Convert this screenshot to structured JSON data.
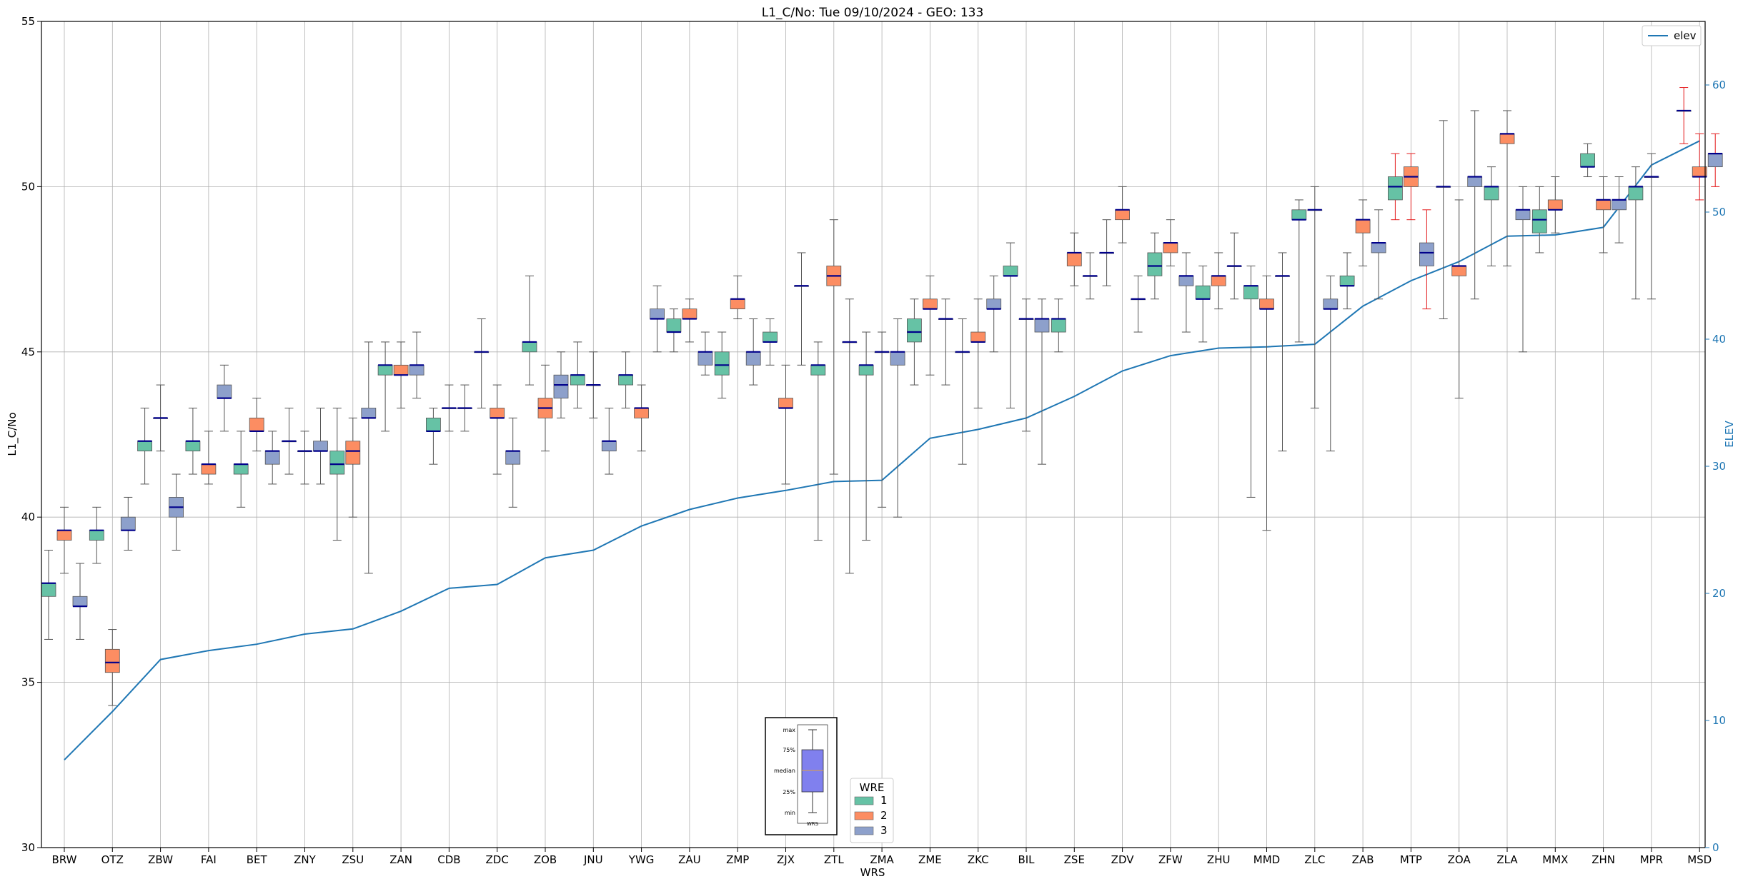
{
  "chart_data": {
    "type": "box",
    "title": "L1_C/No: Tue 09/10/2024 - GEO: 133",
    "xlabel": "WRS",
    "ylabel": "L1_C/No",
    "ylabel_right": "ELEV",
    "ylim": [
      30,
      55
    ],
    "ylim_right": [
      0,
      65
    ],
    "yticks": [
      30,
      35,
      40,
      45,
      50,
      55
    ],
    "yticks_right": [
      0,
      10,
      20,
      30,
      40,
      50,
      60
    ],
    "grid": true,
    "colors": {
      "1": "#66c2a5",
      "2": "#fc8d62",
      "3": "#8da0cb",
      "median": "#00008b",
      "whisker": "#555555",
      "elev": "#1f77b4",
      "whisker_alt": "#e41a1c"
    },
    "line_legend": {
      "label": "elev",
      "placement": "upper right"
    },
    "wre_legend": {
      "title": "WRE",
      "entries": [
        "1",
        "2",
        "3"
      ],
      "placement": "lower center"
    },
    "key_box": {
      "labels": [
        "max",
        "75%",
        "median",
        "25%",
        "min"
      ],
      "xlabel": "WRS"
    },
    "categories": [
      "BRW",
      "OTZ",
      "ZBW",
      "FAI",
      "BET",
      "ZNY",
      "ZSU",
      "ZAN",
      "CDB",
      "ZDC",
      "ZOB",
      "JNU",
      "YWG",
      "ZAU",
      "ZMP",
      "ZJX",
      "ZTL",
      "ZMA",
      "ZME",
      "ZKC",
      "BIL",
      "ZSE",
      "ZDV",
      "ZFW",
      "ZHU",
      "MMD",
      "ZLC",
      "ZAB",
      "MTP",
      "ZOA",
      "ZLA",
      "MMX",
      "ZHN",
      "MPR",
      "MSD"
    ],
    "elev": [
      6.9,
      10.7,
      14.8,
      15.5,
      16.0,
      16.8,
      17.2,
      18.6,
      20.4,
      20.7,
      22.8,
      23.4,
      25.3,
      26.6,
      27.5,
      28.1,
      28.8,
      28.9,
      32.2,
      32.9,
      33.8,
      35.5,
      37.5,
      38.7,
      39.3,
      39.4,
      39.6,
      42.6,
      44.6,
      46.1,
      48.1,
      48.2,
      48.8,
      53.7,
      55.6
    ],
    "boxes": [
      {
        "cat": "BRW",
        "wre": 1,
        "min": 36.3,
        "q1": 37.6,
        "med": 38.0,
        "q3": 38.0,
        "max": 39.0
      },
      {
        "cat": "BRW",
        "wre": 2,
        "min": 38.3,
        "q1": 39.3,
        "med": 39.6,
        "q3": 39.6,
        "max": 40.3
      },
      {
        "cat": "BRW",
        "wre": 3,
        "min": 36.3,
        "q1": 37.3,
        "med": 37.3,
        "q3": 37.6,
        "max": 38.6
      },
      {
        "cat": "OTZ",
        "wre": 1,
        "min": 38.6,
        "q1": 39.3,
        "med": 39.6,
        "q3": 39.6,
        "max": 40.3
      },
      {
        "cat": "OTZ",
        "wre": 2,
        "min": 34.3,
        "q1": 35.3,
        "med": 35.6,
        "q3": 36.0,
        "max": 36.6
      },
      {
        "cat": "OTZ",
        "wre": 3,
        "min": 39.0,
        "q1": 39.6,
        "med": 39.6,
        "q3": 40.0,
        "max": 40.6
      },
      {
        "cat": "ZBW",
        "wre": 1,
        "min": 41.0,
        "q1": 42.0,
        "med": 42.3,
        "q3": 42.3,
        "max": 43.3
      },
      {
        "cat": "ZBW",
        "wre": 2,
        "min": 42.0,
        "q1": 43.0,
        "med": 43.0,
        "q3": 43.0,
        "max": 44.0
      },
      {
        "cat": "ZBW",
        "wre": 3,
        "min": 39.0,
        "q1": 40.0,
        "med": 40.3,
        "q3": 40.6,
        "max": 41.3
      },
      {
        "cat": "FAI",
        "wre": 1,
        "min": 41.3,
        "q1": 42.0,
        "med": 42.3,
        "q3": 42.3,
        "max": 43.3
      },
      {
        "cat": "FAI",
        "wre": 2,
        "min": 41.0,
        "q1": 41.3,
        "med": 41.6,
        "q3": 41.6,
        "max": 42.6
      },
      {
        "cat": "FAI",
        "wre": 3,
        "min": 42.6,
        "q1": 43.6,
        "med": 43.6,
        "q3": 44.0,
        "max": 44.6
      },
      {
        "cat": "BET",
        "wre": 1,
        "min": 40.3,
        "q1": 41.3,
        "med": 41.6,
        "q3": 41.6,
        "max": 42.6
      },
      {
        "cat": "BET",
        "wre": 2,
        "min": 42.0,
        "q1": 42.6,
        "med": 42.6,
        "q3": 43.0,
        "max": 43.6
      },
      {
        "cat": "BET",
        "wre": 3,
        "min": 41.0,
        "q1": 41.6,
        "med": 42.0,
        "q3": 42.0,
        "max": 42.6
      },
      {
        "cat": "ZNY",
        "wre": 1,
        "min": 41.3,
        "q1": 42.3,
        "med": 42.3,
        "q3": 42.3,
        "max": 43.3
      },
      {
        "cat": "ZNY",
        "wre": 2,
        "min": 41.0,
        "q1": 42.0,
        "med": 42.0,
        "q3": 42.0,
        "max": 42.6
      },
      {
        "cat": "ZNY",
        "wre": 3,
        "min": 41.0,
        "q1": 42.0,
        "med": 42.0,
        "q3": 42.3,
        "max": 43.3
      },
      {
        "cat": "ZSU",
        "wre": 1,
        "min": 39.3,
        "q1": 41.3,
        "med": 41.6,
        "q3": 42.0,
        "max": 43.3
      },
      {
        "cat": "ZSU",
        "wre": 2,
        "min": 40.0,
        "q1": 41.6,
        "med": 42.0,
        "q3": 42.3,
        "max": 43.0
      },
      {
        "cat": "ZSU",
        "wre": 3,
        "min": 38.3,
        "q1": 43.0,
        "med": 43.0,
        "q3": 43.3,
        "max": 45.3
      },
      {
        "cat": "ZAN",
        "wre": 1,
        "min": 42.6,
        "q1": 44.3,
        "med": 44.6,
        "q3": 44.6,
        "max": 45.3
      },
      {
        "cat": "ZAN",
        "wre": 2,
        "min": 43.3,
        "q1": 44.3,
        "med": 44.3,
        "q3": 44.6,
        "max": 45.3
      },
      {
        "cat": "ZAN",
        "wre": 3,
        "min": 43.6,
        "q1": 44.3,
        "med": 44.6,
        "q3": 44.6,
        "max": 45.6
      },
      {
        "cat": "CDB",
        "wre": 1,
        "min": 41.6,
        "q1": 42.6,
        "med": 42.6,
        "q3": 43.0,
        "max": 43.3
      },
      {
        "cat": "CDB",
        "wre": 2,
        "min": 42.6,
        "q1": 43.3,
        "med": 43.3,
        "q3": 43.3,
        "max": 44.0
      },
      {
        "cat": "CDB",
        "wre": 3,
        "min": 42.6,
        "q1": 43.3,
        "med": 43.3,
        "q3": 43.3,
        "max": 44.0
      },
      {
        "cat": "ZDC",
        "wre": 1,
        "min": 43.3,
        "q1": 45.0,
        "med": 45.0,
        "q3": 45.0,
        "max": 46.0
      },
      {
        "cat": "ZDC",
        "wre": 2,
        "min": 41.3,
        "q1": 43.0,
        "med": 43.0,
        "q3": 43.3,
        "max": 44.0
      },
      {
        "cat": "ZDC",
        "wre": 3,
        "min": 40.3,
        "q1": 41.6,
        "med": 42.0,
        "q3": 42.0,
        "max": 43.0
      },
      {
        "cat": "ZOB",
        "wre": 1,
        "min": 44.0,
        "q1": 45.0,
        "med": 45.3,
        "q3": 45.3,
        "max": 47.3
      },
      {
        "cat": "ZOB",
        "wre": 2,
        "min": 42.0,
        "q1": 43.0,
        "med": 43.3,
        "q3": 43.6,
        "max": 44.6
      },
      {
        "cat": "ZOB",
        "wre": 3,
        "min": 43.0,
        "q1": 43.6,
        "med": 44.0,
        "q3": 44.3,
        "max": 45.0
      },
      {
        "cat": "JNU",
        "wre": 1,
        "min": 43.3,
        "q1": 44.0,
        "med": 44.3,
        "q3": 44.3,
        "max": 45.3
      },
      {
        "cat": "JNU",
        "wre": 2,
        "min": 43.0,
        "q1": 44.0,
        "med": 44.0,
        "q3": 44.0,
        "max": 45.0
      },
      {
        "cat": "JNU",
        "wre": 3,
        "min": 41.3,
        "q1": 42.0,
        "med": 42.3,
        "q3": 42.3,
        "max": 43.3
      },
      {
        "cat": "YWG",
        "wre": 1,
        "min": 43.3,
        "q1": 44.0,
        "med": 44.3,
        "q3": 44.3,
        "max": 45.0
      },
      {
        "cat": "YWG",
        "wre": 2,
        "min": 42.0,
        "q1": 43.0,
        "med": 43.3,
        "q3": 43.3,
        "max": 44.0
      },
      {
        "cat": "YWG",
        "wre": 3,
        "min": 45.0,
        "q1": 46.0,
        "med": 46.0,
        "q3": 46.3,
        "max": 47.0
      },
      {
        "cat": "ZAU",
        "wre": 1,
        "min": 45.0,
        "q1": 45.6,
        "med": 45.6,
        "q3": 46.0,
        "max": 46.3
      },
      {
        "cat": "ZAU",
        "wre": 2,
        "min": 45.3,
        "q1": 46.0,
        "med": 46.0,
        "q3": 46.3,
        "max": 46.6
      },
      {
        "cat": "ZAU",
        "wre": 3,
        "min": 44.3,
        "q1": 44.6,
        "med": 45.0,
        "q3": 45.0,
        "max": 45.6
      },
      {
        "cat": "ZMP",
        "wre": 1,
        "min": 43.6,
        "q1": 44.3,
        "med": 44.6,
        "q3": 45.0,
        "max": 45.6
      },
      {
        "cat": "ZMP",
        "wre": 2,
        "min": 46.0,
        "q1": 46.3,
        "med": 46.6,
        "q3": 46.6,
        "max": 47.3
      },
      {
        "cat": "ZMP",
        "wre": 3,
        "min": 44.0,
        "q1": 44.6,
        "med": 45.0,
        "q3": 45.0,
        "max": 46.0
      },
      {
        "cat": "ZJX",
        "wre": 1,
        "min": 44.6,
        "q1": 45.3,
        "med": 45.3,
        "q3": 45.6,
        "max": 46.0
      },
      {
        "cat": "ZJX",
        "wre": 2,
        "min": 41.0,
        "q1": 43.3,
        "med": 43.3,
        "q3": 43.6,
        "max": 44.6
      },
      {
        "cat": "ZJX",
        "wre": 3,
        "min": 44.6,
        "q1": 47.0,
        "med": 47.0,
        "q3": 47.0,
        "max": 48.0
      },
      {
        "cat": "ZTL",
        "wre": 1,
        "min": 39.3,
        "q1": 44.3,
        "med": 44.6,
        "q3": 44.6,
        "max": 45.3
      },
      {
        "cat": "ZTL",
        "wre": 2,
        "min": 41.3,
        "q1": 47.0,
        "med": 47.3,
        "q3": 47.6,
        "max": 49.0
      },
      {
        "cat": "ZTL",
        "wre": 3,
        "min": 38.3,
        "q1": 45.3,
        "med": 45.3,
        "q3": 45.3,
        "max": 46.6
      },
      {
        "cat": "ZMA",
        "wre": 1,
        "min": 39.3,
        "q1": 44.3,
        "med": 44.6,
        "q3": 44.6,
        "max": 45.6
      },
      {
        "cat": "ZMA",
        "wre": 2,
        "min": 40.3,
        "q1": 45.0,
        "med": 45.0,
        "q3": 45.0,
        "max": 45.6
      },
      {
        "cat": "ZMA",
        "wre": 3,
        "min": 40.0,
        "q1": 44.6,
        "med": 45.0,
        "q3": 45.0,
        "max": 46.0
      },
      {
        "cat": "ZME",
        "wre": 1,
        "min": 44.0,
        "q1": 45.3,
        "med": 45.6,
        "q3": 46.0,
        "max": 46.6
      },
      {
        "cat": "ZME",
        "wre": 2,
        "min": 44.3,
        "q1": 46.3,
        "med": 46.3,
        "q3": 46.6,
        "max": 47.3
      },
      {
        "cat": "ZME",
        "wre": 3,
        "min": 44.0,
        "q1": 46.0,
        "med": 46.0,
        "q3": 46.0,
        "max": 46.6
      },
      {
        "cat": "ZKC",
        "wre": 1,
        "min": 41.6,
        "q1": 45.0,
        "med": 45.0,
        "q3": 45.0,
        "max": 46.0
      },
      {
        "cat": "ZKC",
        "wre": 2,
        "min": 43.3,
        "q1": 45.3,
        "med": 45.3,
        "q3": 45.6,
        "max": 46.6
      },
      {
        "cat": "ZKC",
        "wre": 3,
        "min": 45.0,
        "q1": 46.3,
        "med": 46.3,
        "q3": 46.6,
        "max": 47.3
      },
      {
        "cat": "BIL",
        "wre": 1,
        "min": 43.3,
        "q1": 47.3,
        "med": 47.3,
        "q3": 47.6,
        "max": 48.3
      },
      {
        "cat": "BIL",
        "wre": 2,
        "min": 42.6,
        "q1": 46.0,
        "med": 46.0,
        "q3": 46.0,
        "max": 46.6
      },
      {
        "cat": "BIL",
        "wre": 3,
        "min": 41.6,
        "q1": 45.6,
        "med": 46.0,
        "q3": 46.0,
        "max": 46.6
      },
      {
        "cat": "ZSE",
        "wre": 1,
        "min": 45.0,
        "q1": 45.6,
        "med": 46.0,
        "q3": 46.0,
        "max": 46.6
      },
      {
        "cat": "ZSE",
        "wre": 2,
        "min": 47.0,
        "q1": 47.6,
        "med": 48.0,
        "q3": 48.0,
        "max": 48.6
      },
      {
        "cat": "ZSE",
        "wre": 3,
        "min": 46.6,
        "q1": 47.3,
        "med": 47.3,
        "q3": 47.3,
        "max": 48.0
      },
      {
        "cat": "ZDV",
        "wre": 1,
        "min": 47.0,
        "q1": 48.0,
        "med": 48.0,
        "q3": 48.0,
        "max": 49.0
      },
      {
        "cat": "ZDV",
        "wre": 2,
        "min": 48.3,
        "q1": 49.0,
        "med": 49.3,
        "q3": 49.3,
        "max": 50.0
      },
      {
        "cat": "ZDV",
        "wre": 3,
        "min": 45.6,
        "q1": 46.6,
        "med": 46.6,
        "q3": 46.6,
        "max": 47.3
      },
      {
        "cat": "ZFW",
        "wre": 1,
        "min": 46.6,
        "q1": 47.3,
        "med": 47.6,
        "q3": 48.0,
        "max": 48.6
      },
      {
        "cat": "ZFW",
        "wre": 2,
        "min": 47.6,
        "q1": 48.0,
        "med": 48.3,
        "q3": 48.3,
        "max": 49.0
      },
      {
        "cat": "ZFW",
        "wre": 3,
        "min": 45.6,
        "q1": 47.0,
        "med": 47.3,
        "q3": 47.3,
        "max": 48.0
      },
      {
        "cat": "ZHU",
        "wre": 1,
        "min": 45.3,
        "q1": 46.6,
        "med": 46.6,
        "q3": 47.0,
        "max": 47.6
      },
      {
        "cat": "ZHU",
        "wre": 2,
        "min": 46.3,
        "q1": 47.0,
        "med": 47.3,
        "q3": 47.3,
        "max": 48.0
      },
      {
        "cat": "ZHU",
        "wre": 3,
        "min": 46.6,
        "q1": 47.6,
        "med": 47.6,
        "q3": 47.6,
        "max": 48.6
      },
      {
        "cat": "MMD",
        "wre": 1,
        "min": 40.6,
        "q1": 46.6,
        "med": 47.0,
        "q3": 47.0,
        "max": 47.6
      },
      {
        "cat": "MMD",
        "wre": 2,
        "min": 39.6,
        "q1": 46.3,
        "med": 46.3,
        "q3": 46.6,
        "max": 47.3
      },
      {
        "cat": "MMD",
        "wre": 3,
        "min": 42.0,
        "q1": 47.3,
        "med": 47.3,
        "q3": 47.3,
        "max": 48.0
      },
      {
        "cat": "ZLC",
        "wre": 1,
        "min": 45.3,
        "q1": 49.0,
        "med": 49.0,
        "q3": 49.3,
        "max": 49.6
      },
      {
        "cat": "ZLC",
        "wre": 2,
        "min": 43.3,
        "q1": 49.3,
        "med": 49.3,
        "q3": 49.3,
        "max": 50.0
      },
      {
        "cat": "ZLC",
        "wre": 3,
        "min": 42.0,
        "q1": 46.3,
        "med": 46.3,
        "q3": 46.6,
        "max": 47.3
      },
      {
        "cat": "ZAB",
        "wre": 1,
        "min": 46.3,
        "q1": 47.0,
        "med": 47.0,
        "q3": 47.3,
        "max": 48.0
      },
      {
        "cat": "ZAB",
        "wre": 2,
        "min": 47.6,
        "q1": 48.6,
        "med": 49.0,
        "q3": 49.0,
        "max": 49.6
      },
      {
        "cat": "ZAB",
        "wre": 3,
        "min": 46.6,
        "q1": 48.0,
        "med": 48.3,
        "q3": 48.3,
        "max": 49.3
      },
      {
        "cat": "MTP",
        "wre": 1,
        "min": 49.0,
        "q1": 49.6,
        "med": 50.0,
        "q3": 50.3,
        "max": 51.0,
        "whisker": "alt"
      },
      {
        "cat": "MTP",
        "wre": 2,
        "min": 49.0,
        "q1": 50.0,
        "med": 50.3,
        "q3": 50.6,
        "max": 51.0,
        "whisker": "alt"
      },
      {
        "cat": "MTP",
        "wre": 3,
        "min": 46.3,
        "q1": 47.6,
        "med": 48.0,
        "q3": 48.3,
        "max": 49.3,
        "whisker": "alt"
      },
      {
        "cat": "ZOA",
        "wre": 1,
        "min": 46.0,
        "q1": 50.0,
        "med": 50.0,
        "q3": 50.0,
        "max": 52.0
      },
      {
        "cat": "ZOA",
        "wre": 2,
        "min": 43.6,
        "q1": 47.3,
        "med": 47.6,
        "q3": 47.6,
        "max": 49.6
      },
      {
        "cat": "ZOA",
        "wre": 3,
        "min": 46.6,
        "q1": 50.0,
        "med": 50.3,
        "q3": 50.3,
        "max": 52.3
      },
      {
        "cat": "ZLA",
        "wre": 1,
        "min": 47.6,
        "q1": 49.6,
        "med": 50.0,
        "q3": 50.0,
        "max": 50.6
      },
      {
        "cat": "ZLA",
        "wre": 2,
        "min": 47.6,
        "q1": 51.3,
        "med": 51.6,
        "q3": 51.6,
        "max": 52.3
      },
      {
        "cat": "ZLA",
        "wre": 3,
        "min": 45.0,
        "q1": 49.0,
        "med": 49.3,
        "q3": 49.3,
        "max": 50.0
      },
      {
        "cat": "MMX",
        "wre": 1,
        "min": 48.0,
        "q1": 48.6,
        "med": 49.0,
        "q3": 49.3,
        "max": 50.0
      },
      {
        "cat": "MMX",
        "wre": 2,
        "min": 48.6,
        "q1": 49.3,
        "med": 49.3,
        "q3": 49.6,
        "max": 50.3
      },
      {
        "cat": "MMX",
        "wre": 3,
        "min": null,
        "q1": null,
        "med": null,
        "q3": null,
        "max": null
      },
      {
        "cat": "ZHN",
        "wre": 1,
        "min": 50.3,
        "q1": 50.6,
        "med": 50.6,
        "q3": 51.0,
        "max": 51.3
      },
      {
        "cat": "ZHN",
        "wre": 2,
        "min": 48.0,
        "q1": 49.3,
        "med": 49.6,
        "q3": 49.6,
        "max": 50.3
      },
      {
        "cat": "ZHN",
        "wre": 3,
        "min": 48.3,
        "q1": 49.3,
        "med": 49.6,
        "q3": 49.6,
        "max": 50.3
      },
      {
        "cat": "MPR",
        "wre": 1,
        "min": 46.6,
        "q1": 49.6,
        "med": 50.0,
        "q3": 50.0,
        "max": 50.6
      },
      {
        "cat": "MPR",
        "wre": 2,
        "min": 46.6,
        "q1": 50.3,
        "med": 50.3,
        "q3": 50.3,
        "max": 51.0
      },
      {
        "cat": "MPR",
        "wre": 3,
        "min": null,
        "q1": null,
        "med": null,
        "q3": null,
        "max": null
      },
      {
        "cat": "MSD",
        "wre": 1,
        "min": 51.3,
        "q1": 52.3,
        "med": 52.3,
        "q3": 52.3,
        "max": 53.0,
        "whisker": "alt"
      },
      {
        "cat": "MSD",
        "wre": 2,
        "min": 49.6,
        "q1": 50.3,
        "med": 50.3,
        "q3": 50.6,
        "max": 51.6,
        "whisker": "alt"
      },
      {
        "cat": "MSD",
        "wre": 3,
        "min": 50.0,
        "q1": 50.6,
        "med": 51.0,
        "q3": 51.0,
        "max": 51.6,
        "whisker": "alt"
      }
    ]
  }
}
